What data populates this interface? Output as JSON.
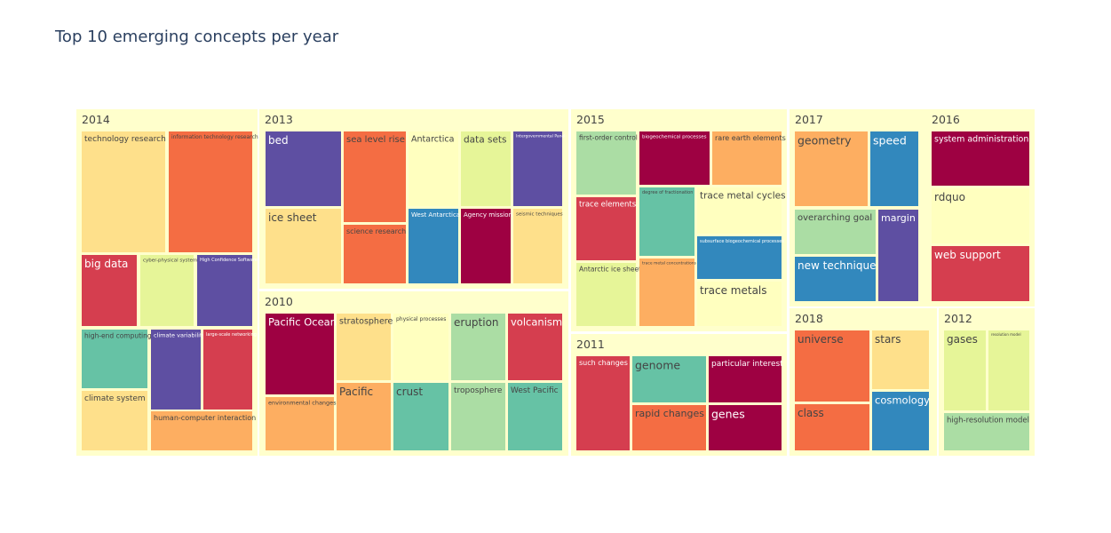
{
  "chart_data": {
    "type": "treemap",
    "title": "Top 10 emerging concepts per year",
    "background_color": "#ffffcc",
    "groups": [
      {
        "year": "2014",
        "items": [
          {
            "label": "technology research",
            "color": "#fee08b",
            "text": "dark"
          },
          {
            "label": "information technology research",
            "color": "#f46d43",
            "text": "dark"
          },
          {
            "label": "big data",
            "color": "#d53e4f",
            "text": "light"
          },
          {
            "label": "cyber-physical systems",
            "color": "#e6f598",
            "text": "dark"
          },
          {
            "label": "High Confidence Software",
            "color": "#5e4fa2",
            "text": "light"
          },
          {
            "label": "high-end computing",
            "color": "#66c2a5",
            "text": "dark"
          },
          {
            "label": "climate variability",
            "color": "#5e4fa2",
            "text": "light"
          },
          {
            "label": "large-scale networking",
            "color": "#d53e4f",
            "text": "light"
          },
          {
            "label": "climate system",
            "color": "#fee08b",
            "text": "dark"
          },
          {
            "label": "human-computer interaction",
            "color": "#fdae61",
            "text": "dark"
          }
        ]
      },
      {
        "year": "2013",
        "items": [
          {
            "label": "bed",
            "color": "#5e4fa2",
            "text": "light"
          },
          {
            "label": "sea level rise",
            "color": "#f46d43",
            "text": "dark"
          },
          {
            "label": "Antarctica",
            "color": "#ffffbf",
            "text": "dark"
          },
          {
            "label": "data sets",
            "color": "#e6f598",
            "text": "dark"
          },
          {
            "label": "Intergovernmental Panel",
            "color": "#5e4fa2",
            "text": "light"
          },
          {
            "label": "ice sheet",
            "color": "#fee08b",
            "text": "dark"
          },
          {
            "label": "science research",
            "color": "#f46d43",
            "text": "dark"
          },
          {
            "label": "West Antarctica",
            "color": "#3288bd",
            "text": "light"
          },
          {
            "label": "Agency mission",
            "color": "#9e0142",
            "text": "light"
          },
          {
            "label": "seismic techniques",
            "color": "#fee08b",
            "text": "dark"
          }
        ]
      },
      {
        "year": "2010",
        "items": [
          {
            "label": "Pacific Ocean",
            "color": "#9e0142",
            "text": "light"
          },
          {
            "label": "stratosphere",
            "color": "#fee08b",
            "text": "dark"
          },
          {
            "label": "physical processes",
            "color": "#ffffbf",
            "text": "dark"
          },
          {
            "label": "eruption",
            "color": "#abdda4",
            "text": "dark"
          },
          {
            "label": "volcanism",
            "color": "#d53e4f",
            "text": "light"
          },
          {
            "label": "environmental changes",
            "color": "#fdae61",
            "text": "dark"
          },
          {
            "label": "Pacific",
            "color": "#fdae61",
            "text": "dark"
          },
          {
            "label": "crust",
            "color": "#66c2a5",
            "text": "dark"
          },
          {
            "label": "troposphere",
            "color": "#abdda4",
            "text": "dark"
          },
          {
            "label": "West Pacific",
            "color": "#66c2a5",
            "text": "dark"
          }
        ]
      },
      {
        "year": "2015",
        "items": [
          {
            "label": "first-order control",
            "color": "#abdda4",
            "text": "dark"
          },
          {
            "label": "biogeochemical processes",
            "color": "#9e0142",
            "text": "light"
          },
          {
            "label": "rare earth elements",
            "color": "#fdae61",
            "text": "dark"
          },
          {
            "label": "trace elements",
            "color": "#d53e4f",
            "text": "light"
          },
          {
            "label": "degree of fractionation",
            "color": "#66c2a5",
            "text": "dark"
          },
          {
            "label": "trace metal cycles",
            "color": "#ffffbf",
            "text": "dark"
          },
          {
            "label": "subsurface biogeochemical processes",
            "color": "#3288bd",
            "text": "light"
          },
          {
            "label": "Antarctic ice sheet",
            "color": "#e6f598",
            "text": "dark"
          },
          {
            "label": "trace metal concentrations",
            "color": "#fdae61",
            "text": "dark"
          },
          {
            "label": "trace metals",
            "color": "#ffffbf",
            "text": "dark"
          }
        ]
      },
      {
        "year": "2011",
        "items": [
          {
            "label": "such changes",
            "color": "#d53e4f",
            "text": "light"
          },
          {
            "label": "genome",
            "color": "#66c2a5",
            "text": "dark"
          },
          {
            "label": "particular interest",
            "color": "#9e0142",
            "text": "light"
          },
          {
            "label": "rapid changes",
            "color": "#f46d43",
            "text": "dark"
          },
          {
            "label": "genes",
            "color": "#9e0142",
            "text": "light"
          }
        ]
      },
      {
        "year": "2017",
        "items": [
          {
            "label": "geometry",
            "color": "#fdae61",
            "text": "dark"
          },
          {
            "label": "speed",
            "color": "#3288bd",
            "text": "light"
          },
          {
            "label": "overarching goal",
            "color": "#abdda4",
            "text": "dark"
          },
          {
            "label": "margin",
            "color": "#5e4fa2",
            "text": "light"
          },
          {
            "label": "new technique",
            "color": "#3288bd",
            "text": "light"
          }
        ]
      },
      {
        "year": "2016",
        "items": [
          {
            "label": "system administration",
            "color": "#9e0142",
            "text": "light"
          },
          {
            "label": "rdquo",
            "color": "#ffffbf",
            "text": "dark"
          },
          {
            "label": "web support",
            "color": "#d53e4f",
            "text": "light"
          }
        ]
      },
      {
        "year": "2018",
        "items": [
          {
            "label": "universe",
            "color": "#f46d43",
            "text": "dark"
          },
          {
            "label": "stars",
            "color": "#fee08b",
            "text": "dark"
          },
          {
            "label": "class",
            "color": "#f46d43",
            "text": "dark"
          },
          {
            "label": "cosmology",
            "color": "#3288bd",
            "text": "light"
          }
        ]
      },
      {
        "year": "2012",
        "items": [
          {
            "label": "gases",
            "color": "#e6f598",
            "text": "dark"
          },
          {
            "label": "resolution model",
            "color": "#e6f598",
            "text": "dark"
          },
          {
            "label": "high-resolution model",
            "color": "#abdda4",
            "text": "dark"
          }
        ]
      }
    ]
  }
}
